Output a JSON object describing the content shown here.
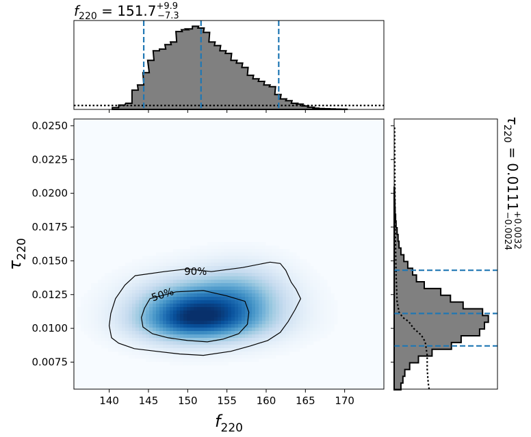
{
  "chart_data": [
    {
      "panel": "marginal-top",
      "type": "histogram",
      "title": {
        "param": "f",
        "sub": "220",
        "median": "151.7",
        "plus": "+9.9",
        "minus": "−7.3",
        "eq": " = "
      },
      "xlim": [
        135.5,
        175
      ],
      "quantiles": {
        "lower": 144.4,
        "median": 151.7,
        "upper": 161.6
      },
      "prior_level": 0.045,
      "bins": [
        [
          140.8,
          0.02
        ],
        [
          141.6,
          0.05
        ],
        [
          142.5,
          0.07
        ],
        [
          143.3,
          0.22
        ],
        [
          144.0,
          0.28
        ],
        [
          144.7,
          0.42
        ],
        [
          145.3,
          0.56
        ],
        [
          146.0,
          0.67
        ],
        [
          146.8,
          0.69
        ],
        [
          147.5,
          0.74
        ],
        [
          148.2,
          0.77
        ],
        [
          148.9,
          0.89
        ],
        [
          149.6,
          0.91
        ],
        [
          150.2,
          0.92
        ],
        [
          151.0,
          0.95
        ],
        [
          151.7,
          0.93
        ],
        [
          152.4,
          0.88
        ],
        [
          153.1,
          0.77
        ],
        [
          153.8,
          0.73
        ],
        [
          154.5,
          0.67
        ],
        [
          155.2,
          0.64
        ],
        [
          155.9,
          0.56
        ],
        [
          156.6,
          0.53
        ],
        [
          157.3,
          0.48
        ],
        [
          158.0,
          0.39
        ],
        [
          158.7,
          0.35
        ],
        [
          159.4,
          0.32
        ],
        [
          160.1,
          0.28
        ],
        [
          160.8,
          0.26
        ],
        [
          161.5,
          0.17
        ],
        [
          162.2,
          0.12
        ],
        [
          162.9,
          0.1
        ],
        [
          163.6,
          0.07
        ],
        [
          164.3,
          0.06
        ],
        [
          165.0,
          0.04
        ],
        [
          165.7,
          0.025
        ],
        [
          166.4,
          0.015
        ],
        [
          167.1,
          0.01
        ],
        [
          167.8,
          0.008
        ],
        [
          168.5,
          0.006
        ],
        [
          169.2,
          0.004
        ],
        [
          169.9,
          0.003
        ]
      ]
    },
    {
      "panel": "joint",
      "type": "heatmap",
      "xlabel": {
        "param": "f",
        "sub": "220"
      },
      "ylabel": {
        "param": "τ",
        "sub": "220"
      },
      "xlim": [
        135.5,
        175
      ],
      "ylim": [
        0.0055,
        0.0255
      ],
      "xticks": [
        140,
        145,
        150,
        155,
        160,
        165,
        170
      ],
      "yticks": [
        0.0075,
        0.01,
        0.0125,
        0.015,
        0.0175,
        0.02,
        0.0225,
        0.025
      ],
      "xtick_labels": [
        "140",
        "145",
        "150",
        "155",
        "160",
        "165",
        "170"
      ],
      "ytick_labels": [
        "0.0075",
        "0.0100",
        "0.0125",
        "0.0150",
        "0.0175",
        "0.0200",
        "0.0225",
        "0.0250"
      ],
      "peak": [
        151.0,
        0.0108
      ],
      "colormap": "Blues",
      "contours": [
        {
          "label": "90%",
          "label_at": [
            151.0,
            0.0142
          ],
          "label_angle": 0,
          "points": [
            [
              143.3,
              0.0139
            ],
            [
              147,
              0.0142
            ],
            [
              150,
              0.0144
            ],
            [
              153,
              0.0142
            ],
            [
              157,
              0.0145
            ],
            [
              160.5,
              0.0149
            ],
            [
              161.8,
              0.0148
            ],
            [
              162.5,
              0.0143
            ],
            [
              163.2,
              0.0134
            ],
            [
              163.8,
              0.0129
            ],
            [
              164.4,
              0.0122
            ],
            [
              163.7,
              0.0114
            ],
            [
              162.8,
              0.0105
            ],
            [
              161.8,
              0.0097
            ],
            [
              160.2,
              0.0091
            ],
            [
              158,
              0.0087
            ],
            [
              155.5,
              0.0083
            ],
            [
              152,
              0.008
            ],
            [
              149,
              0.0081
            ],
            [
              146,
              0.0083
            ],
            [
              143.2,
              0.0085
            ],
            [
              141.2,
              0.0089
            ],
            [
              140.3,
              0.0093
            ],
            [
              140.0,
              0.0102
            ],
            [
              140.2,
              0.0111
            ],
            [
              140.8,
              0.0122
            ],
            [
              142.0,
              0.0132
            ]
          ]
        },
        {
          "label": "50%",
          "label_at": [
            146.8,
            0.0125
          ],
          "label_angle": -18,
          "points": [
            [
              145.2,
              0.0122
            ],
            [
              148.5,
              0.0127
            ],
            [
              152,
              0.0128
            ],
            [
              155,
              0.0124
            ],
            [
              157.3,
              0.012
            ],
            [
              157.8,
              0.0112
            ],
            [
              157.6,
              0.0103
            ],
            [
              156.5,
              0.0096
            ],
            [
              154.5,
              0.0092
            ],
            [
              152.5,
              0.009
            ],
            [
              150,
              0.0091
            ],
            [
              147.5,
              0.0093
            ],
            [
              145.5,
              0.0096
            ],
            [
              144.3,
              0.0101
            ],
            [
              144.1,
              0.0108
            ],
            [
              144.5,
              0.0115
            ]
          ]
        }
      ]
    },
    {
      "panel": "marginal-right",
      "type": "histogram",
      "orientation": "horizontal",
      "title": {
        "param": "τ",
        "sub": "220",
        "median": "0.0111",
        "plus": "+0.0032",
        "minus": "−0.0024",
        "eq": " = "
      },
      "ylim": [
        0.0055,
        0.0255
      ],
      "quantiles": {
        "lower": 0.0087,
        "median": 0.0111,
        "upper": 0.0143
      },
      "bins": [
        [
          0.0057,
          0.07
        ],
        [
          0.0062,
          0.09
        ],
        [
          0.0067,
          0.11
        ],
        [
          0.0072,
          0.16
        ],
        [
          0.0077,
          0.25
        ],
        [
          0.0082,
          0.39
        ],
        [
          0.0087,
          0.59
        ],
        [
          0.0092,
          0.69
        ],
        [
          0.0097,
          0.88
        ],
        [
          0.0102,
          0.93
        ],
        [
          0.0107,
          0.97
        ],
        [
          0.0112,
          0.91
        ],
        [
          0.0117,
          0.71
        ],
        [
          0.0122,
          0.58
        ],
        [
          0.0127,
          0.48
        ],
        [
          0.0132,
          0.31
        ],
        [
          0.0137,
          0.23
        ],
        [
          0.0142,
          0.19
        ],
        [
          0.0147,
          0.14
        ],
        [
          0.0152,
          0.1
        ],
        [
          0.0157,
          0.07
        ],
        [
          0.0162,
          0.05
        ],
        [
          0.0167,
          0.04
        ],
        [
          0.0172,
          0.03
        ],
        [
          0.0177,
          0.02
        ],
        [
          0.0182,
          0.015
        ],
        [
          0.0187,
          0.01
        ],
        [
          0.0192,
          0.008
        ],
        [
          0.0197,
          0.005
        ],
        [
          0.0202,
          0.004
        ]
      ],
      "prior_curve": [
        [
          0.0055,
          0.36
        ],
        [
          0.006,
          0.35
        ],
        [
          0.007,
          0.34
        ],
        [
          0.008,
          0.34
        ],
        [
          0.009,
          0.32
        ],
        [
          0.0095,
          0.28
        ],
        [
          0.01,
          0.2
        ],
        [
          0.0105,
          0.15
        ],
        [
          0.0108,
          0.09
        ],
        [
          0.0112,
          0.05
        ],
        [
          0.012,
          0.03
        ],
        [
          0.014,
          0.02
        ],
        [
          0.018,
          0.01
        ],
        [
          0.025,
          0.005
        ]
      ]
    }
  ]
}
